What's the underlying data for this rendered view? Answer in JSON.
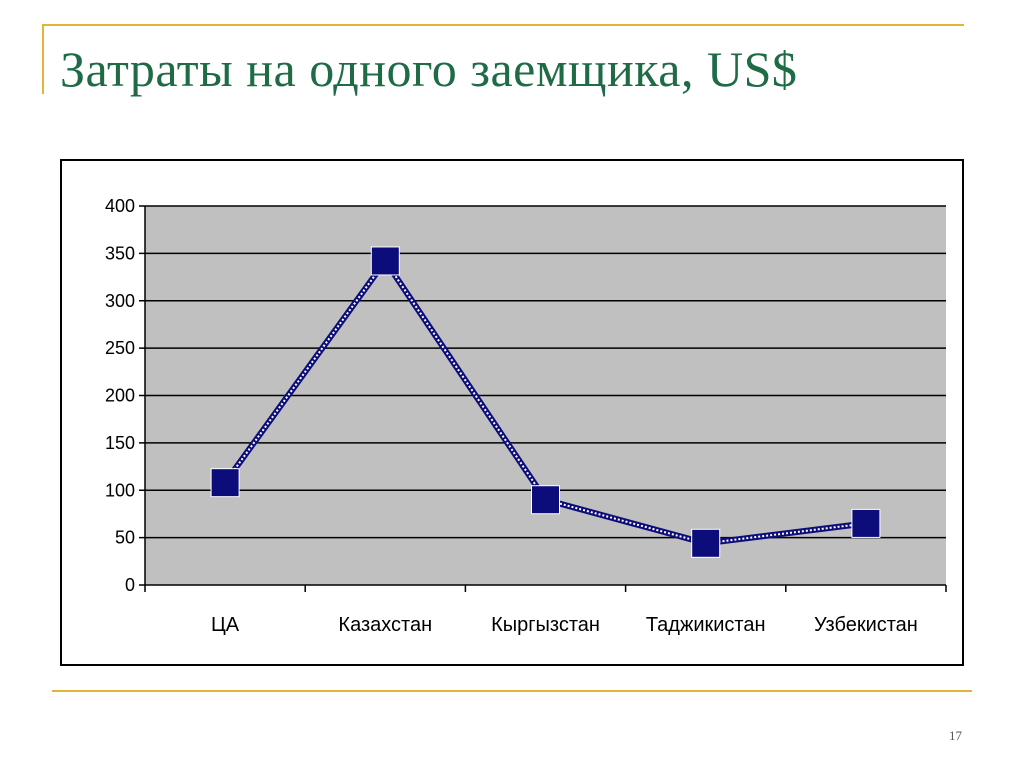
{
  "slide": {
    "title": "Затраты на одного заемщика, US$",
    "page_number": "17",
    "accent_color": "#e3b33a",
    "title_color": "#1e6b46"
  },
  "chart_data": {
    "type": "line",
    "title": "",
    "xlabel": "",
    "ylabel": "",
    "categories": [
      "ЦА",
      "Казахстан",
      "Кыргызстан",
      "Таджикистан",
      "Узбекистан"
    ],
    "series": [
      {
        "values": [
          108,
          342,
          90,
          44,
          65
        ],
        "color": "#0c0c7a"
      }
    ],
    "ylim": [
      0,
      400
    ],
    "yticks": [
      0,
      50,
      100,
      150,
      200,
      250,
      300,
      350,
      400
    ],
    "ytick_labels": [
      "0",
      "50",
      "100",
      "150",
      "200",
      "250",
      "300",
      "350",
      "400"
    ],
    "grid": true,
    "plot_background": "#c0c0c0",
    "legend": "none"
  }
}
